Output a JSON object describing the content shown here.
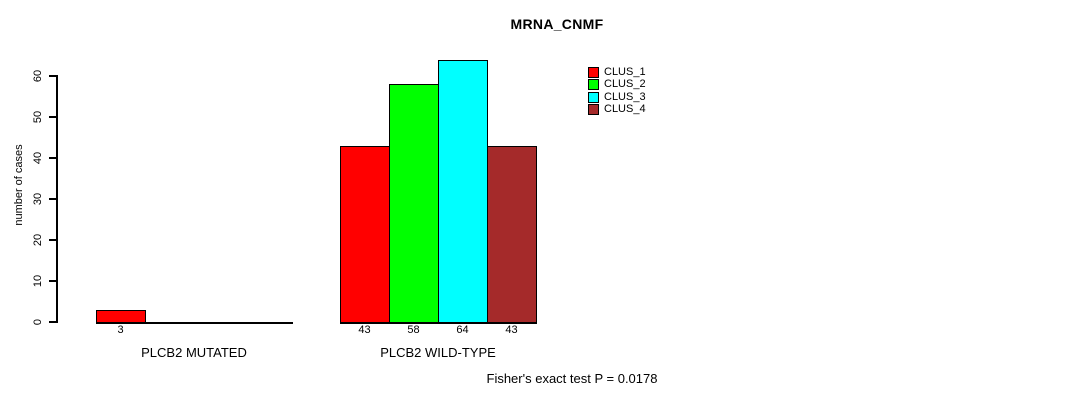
{
  "chart_data": {
    "type": "bar",
    "title": "MRNA_CNMF",
    "ylabel": "number of cases",
    "ylim": [
      0,
      60
    ],
    "yticks": [
      0,
      10,
      20,
      30,
      40,
      50,
      60
    ],
    "grid": false,
    "legend_position": "top-right",
    "series": [
      "CLUS_1",
      "CLUS_2",
      "CLUS_3",
      "CLUS_4"
    ],
    "series_colors": [
      "#FF0000",
      "#00FF00",
      "#00FFFF",
      "#A52A2A"
    ],
    "categories": [
      "PLCB2 MUTATED",
      "PLCB2 WILD-TYPE"
    ],
    "groups": [
      {
        "label": "PLCB2 MUTATED",
        "values": [
          3,
          0,
          0,
          0
        ]
      },
      {
        "label": "PLCB2 WILD-TYPE",
        "values": [
          43,
          58,
          64,
          43
        ]
      }
    ],
    "bar_value_labels": [
      "3",
      "43",
      "58",
      "64",
      "43"
    ],
    "annotation": "Fisher's exact test P = 0.0178",
    "colors": {
      "axis": "#000000",
      "text": "#000000",
      "background": "#FFFFFF"
    }
  }
}
